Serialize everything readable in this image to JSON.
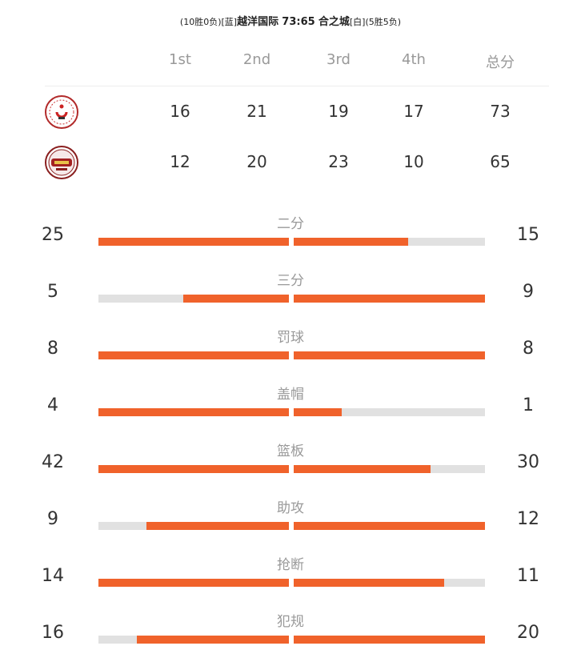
{
  "header": {
    "home_record": "(10胜0负)",
    "home_color": "[蓝]",
    "home_name": "越洋国际",
    "score": "73:65",
    "away_name": "合之城",
    "away_color": "[白]",
    "away_record": "(5胜5负)"
  },
  "quarters": [
    "1st",
    "2nd",
    "3rd",
    "4th",
    "总分"
  ],
  "teams": [
    {
      "logo_icon": "team-logo-yueyang",
      "scores": [
        "16",
        "21",
        "19",
        "17",
        "73"
      ]
    },
    {
      "logo_icon": "team-logo-hezhicheng",
      "scores": [
        "12",
        "20",
        "23",
        "10",
        "65"
      ]
    }
  ],
  "stats": [
    {
      "label": "二分",
      "left": 25,
      "right": 15
    },
    {
      "label": "三分",
      "left": 5,
      "right": 9
    },
    {
      "label": "罚球",
      "left": 8,
      "right": 8
    },
    {
      "label": "盖帽",
      "left": 4,
      "right": 1
    },
    {
      "label": "篮板",
      "left": 42,
      "right": 30
    },
    {
      "label": "助攻",
      "left": 9,
      "right": 12
    },
    {
      "label": "抢断",
      "left": 14,
      "right": 11
    },
    {
      "label": "犯规",
      "left": 16,
      "right": 20
    }
  ],
  "colors": {
    "bar_fill": "#f0622b",
    "bar_track": "#e1e1e1"
  }
}
